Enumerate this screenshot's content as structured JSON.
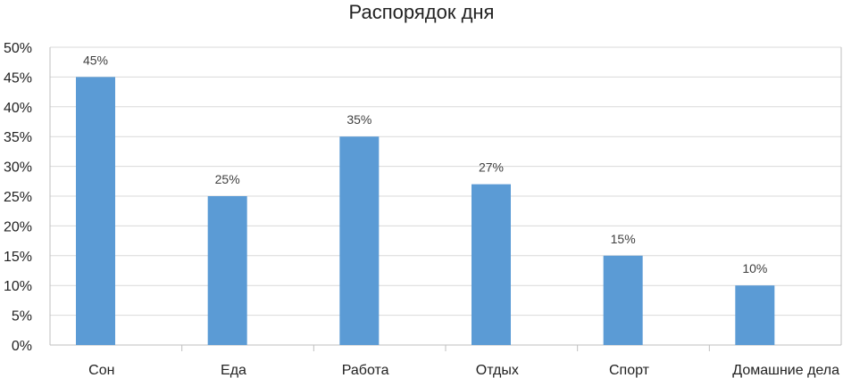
{
  "chart_data": {
    "type": "bar",
    "title": "Распорядок дня",
    "xlabel": "",
    "ylabel": "",
    "categories": [
      "Сон",
      "Еда",
      "Работа",
      "Отдых",
      "Спорт",
      "Домашние дела"
    ],
    "values": [
      45,
      25,
      35,
      27,
      15,
      10
    ],
    "data_labels": [
      "45%",
      "25%",
      "35%",
      "27%",
      "15%",
      "10%"
    ],
    "y_ticks": [
      "0%",
      "5%",
      "10%",
      "15%",
      "20%",
      "25%",
      "30%",
      "35%",
      "40%",
      "45%",
      "50%"
    ],
    "ylim": [
      0,
      50
    ],
    "grid": true,
    "legend": "none"
  },
  "colors": {
    "bar": "#5b9bd5",
    "grid": "#d9d9d9",
    "axis": "#bfbfbf",
    "text": "#222222",
    "label": "#404040"
  }
}
